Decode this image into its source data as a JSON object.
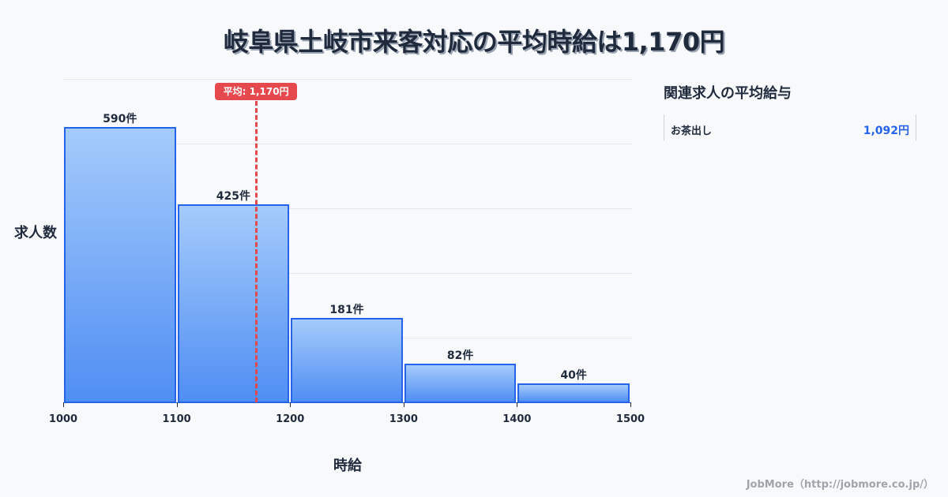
{
  "title": "岐阜県土岐市来客対応の平均時給は1,170円",
  "chart_data": {
    "type": "bar",
    "title": "岐阜県土岐市来客対応の平均時給は1,170円",
    "xlabel": "時給",
    "ylabel": "求人数",
    "categories": [
      "1000-1100",
      "1100-1200",
      "1200-1300",
      "1300-1400",
      "1400-1500"
    ],
    "bin_edges": [
      1000,
      1100,
      1200,
      1300,
      1400,
      1500
    ],
    "values": [
      590,
      425,
      181,
      82,
      40
    ],
    "value_labels": [
      "590件",
      "425件",
      "181件",
      "82件",
      "40件"
    ],
    "x_ticks": [
      "1000",
      "1100",
      "1200",
      "1300",
      "1400",
      "1500"
    ],
    "xlim": [
      1000,
      1500
    ],
    "ylim": [
      0,
      693
    ],
    "grid": true,
    "average": {
      "value": 1170,
      "label": "平均: 1,170円",
      "color": "#e5484d"
    },
    "bar_color": "#2563eb"
  },
  "sidebar": {
    "title": "関連求人の平均給与",
    "items": [
      {
        "name": "お茶出し",
        "value": "1,092円"
      }
    ]
  },
  "footer": "JobMore（http://jobmore.co.jp/）"
}
